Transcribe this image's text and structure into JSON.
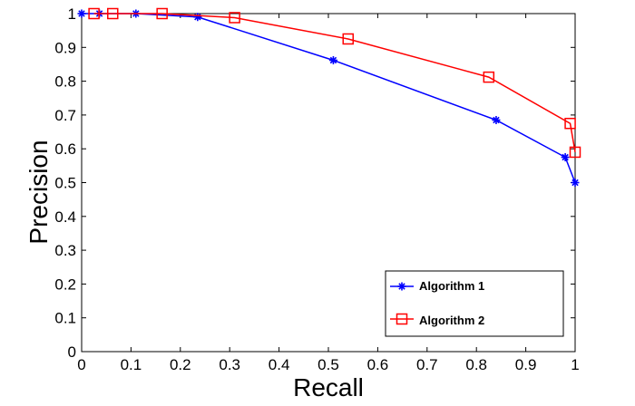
{
  "chart_data": {
    "type": "line",
    "xlabel": "Recall",
    "ylabel": "Precision",
    "xlim": [
      0,
      1
    ],
    "ylim": [
      0,
      1
    ],
    "xticks": [
      "0",
      "0.1",
      "0.2",
      "0.3",
      "0.4",
      "0.5",
      "0.6",
      "0.7",
      "0.8",
      "0.9",
      "1"
    ],
    "yticks": [
      "0",
      "0.1",
      "0.2",
      "0.3",
      "0.4",
      "0.5",
      "0.6",
      "0.7",
      "0.8",
      "0.9",
      "1"
    ],
    "grid": false,
    "legend_position": "bottom-right",
    "series": [
      {
        "name": "Algorithm 1",
        "color": "#0000ff",
        "marker": "asterisk",
        "x": [
          0,
          0.036,
          0.11,
          0.235,
          0.51,
          0.84,
          0.98,
          1.0
        ],
        "y": [
          1.0,
          1.0,
          1.0,
          0.99,
          0.862,
          0.685,
          0.575,
          0.5
        ]
      },
      {
        "name": "Algorithm 2",
        "color": "#ff0000",
        "marker": "square",
        "x": [
          0.025,
          0.063,
          0.163,
          0.31,
          0.54,
          0.825,
          0.99,
          1.0
        ],
        "y": [
          1.0,
          1.0,
          1.0,
          0.988,
          0.925,
          0.812,
          0.675,
          0.59
        ]
      }
    ]
  }
}
